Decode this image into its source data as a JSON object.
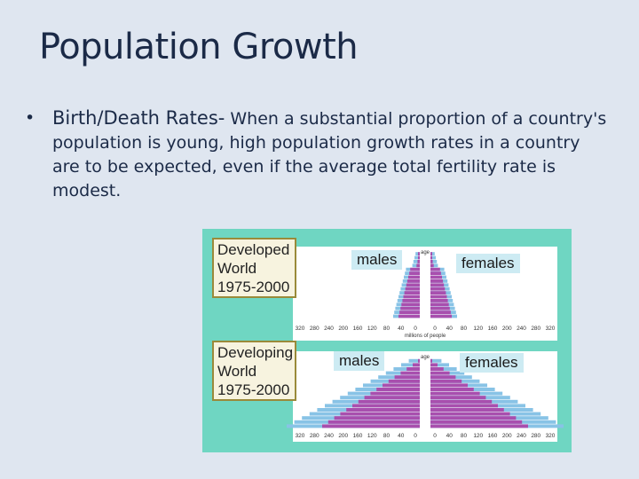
{
  "slide": {
    "title": "Population Growth",
    "bullet_symbol": "•",
    "bullet_lead": "Birth/Death Rates-",
    "bullet_body": " When a substantial proportion of a country's population is young, high population growth rates in a country are to be expected, even if the average total fertility rate is modest."
  },
  "figure": {
    "developed": {
      "label_lines": [
        "Developed",
        "World",
        "1975-2000"
      ],
      "males_label": "males",
      "females_label": "females",
      "axis_ticks_left": [
        "320",
        "280",
        "240",
        "200",
        "160",
        "120",
        "80",
        "40",
        "0"
      ],
      "axis_ticks_right": [
        "0",
        "40",
        "80",
        "120",
        "160",
        "200",
        "240",
        "280",
        "320"
      ],
      "axis_title": "millions of people",
      "age_label": "age"
    },
    "developing": {
      "label_lines": [
        "Developing",
        "World",
        "1975-2000"
      ],
      "males_label": "males",
      "females_label": "females",
      "axis_ticks_left": [
        "320",
        "280",
        "240",
        "200",
        "160",
        "120",
        "80",
        "40",
        "0"
      ],
      "axis_ticks_right": [
        "0",
        "40",
        "80",
        "120",
        "160",
        "200",
        "240",
        "280",
        "320"
      ],
      "age_label": "age"
    },
    "colors": {
      "background": "#6fd6c2",
      "panel": "#ffffff",
      "year_1975": "#a84fae",
      "year_2000": "#88c3e6",
      "label_box": "#f7f3df"
    }
  }
}
